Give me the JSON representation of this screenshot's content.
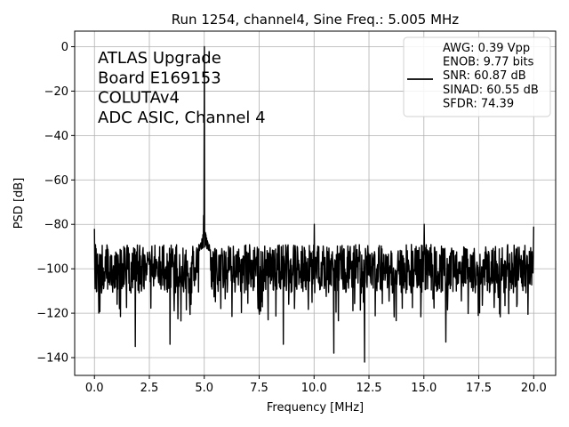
{
  "chart_data": {
    "type": "line",
    "title": "Run 1254, channel4, Sine Freq.: 5.005 MHz",
    "xlabel": "Frequency [MHz]",
    "ylabel": "PSD [dB]",
    "xlim": [
      -0.9,
      21.0
    ],
    "ylim": [
      -148,
      7
    ],
    "xticks": [
      0.0,
      2.5,
      5.0,
      7.5,
      10.0,
      12.5,
      15.0,
      17.5,
      20.0
    ],
    "xtick_labels": [
      "0.0",
      "2.5",
      "5.0",
      "7.5",
      "10.0",
      "12.5",
      "15.0",
      "17.5",
      "20.0"
    ],
    "yticks": [
      0,
      -20,
      -40,
      -60,
      -80,
      -100,
      -120,
      -140
    ],
    "ytick_labels": [
      "0",
      "−20",
      "−40",
      "−60",
      "−80",
      "−100",
      "−120",
      "−140"
    ],
    "grid": true,
    "annotation_lines": [
      "ATLAS Upgrade",
      " Board E169153",
      "COLUTAv4",
      "ADC ASIC, Channel 4"
    ],
    "legend": {
      "placement": "top-right",
      "lines": [
        "AWG: 0.39 Vpp",
        "ENOB: 9.77 bits",
        "SNR: 60.87 dB",
        "SINAD: 60.55 dB",
        "SFDR: 74.39"
      ]
    },
    "series_color": "#000000",
    "noise_floor": {
      "x_start": 0.0,
      "x_end": 20.0,
      "mean": -100,
      "upper": -90,
      "lower": -112
    },
    "peaks": [
      {
        "x": 0.0,
        "y": -82
      },
      {
        "x": 5.005,
        "y": 0
      },
      {
        "x": 4.97,
        "y": -76
      },
      {
        "x": 10.01,
        "y": -80
      },
      {
        "x": 15.015,
        "y": -80
      },
      {
        "x": 20.0,
        "y": -81
      }
    ],
    "dips": [
      {
        "x": 1.86,
        "y": -135
      },
      {
        "x": 3.44,
        "y": -134
      },
      {
        "x": 8.6,
        "y": -134
      },
      {
        "x": 10.9,
        "y": -138
      },
      {
        "x": 12.3,
        "y": -142
      },
      {
        "x": 16.0,
        "y": -133
      }
    ]
  }
}
